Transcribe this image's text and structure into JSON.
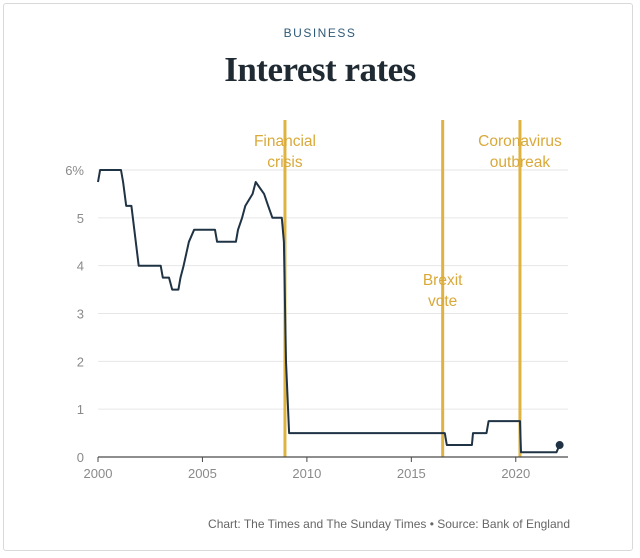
{
  "header": {
    "section": "BUSINESS",
    "title": "Interest rates"
  },
  "source": "Chart: The Times and The Sunday Times • Source: Bank of England",
  "colors": {
    "line": "#1f3344",
    "event": "#e0b341",
    "event_text": "#d9a93a",
    "grid": "#e6e6e6",
    "axis": "#4a4a4a",
    "tick_text": "#8a8a8a"
  },
  "chart_data": {
    "type": "line",
    "title": "Interest rates",
    "xlabel": "",
    "ylabel": "",
    "xlim": [
      2000,
      2022.5
    ],
    "ylim": [
      0,
      6
    ],
    "grid": true,
    "x_ticks": [
      2000,
      2005,
      2010,
      2015,
      2020
    ],
    "x_tick_labels": [
      "2000",
      "2005",
      "2010",
      "2015",
      "2020"
    ],
    "y_ticks": [
      0,
      1,
      2,
      3,
      4,
      5,
      6
    ],
    "y_tick_labels": [
      "0",
      "1",
      "2",
      "3",
      "4",
      "5",
      "6%"
    ],
    "series": [
      {
        "values": [
          [
            2000.0,
            5.75
          ],
          [
            2000.1,
            6.0
          ],
          [
            2001.1,
            6.0
          ],
          [
            2001.2,
            5.75
          ],
          [
            2001.35,
            5.25
          ],
          [
            2001.6,
            5.25
          ],
          [
            2001.95,
            4.0
          ],
          [
            2003.0,
            4.0
          ],
          [
            2003.1,
            3.75
          ],
          [
            2003.4,
            3.75
          ],
          [
            2003.55,
            3.5
          ],
          [
            2003.85,
            3.5
          ],
          [
            2003.95,
            3.75
          ],
          [
            2004.1,
            4.0
          ],
          [
            2004.35,
            4.5
          ],
          [
            2004.6,
            4.75
          ],
          [
            2005.6,
            4.75
          ],
          [
            2005.7,
            4.5
          ],
          [
            2006.6,
            4.5
          ],
          [
            2006.7,
            4.75
          ],
          [
            2006.9,
            5.0
          ],
          [
            2007.05,
            5.25
          ],
          [
            2007.4,
            5.5
          ],
          [
            2007.55,
            5.75
          ],
          [
            2007.95,
            5.5
          ],
          [
            2008.15,
            5.25
          ],
          [
            2008.35,
            5.0
          ],
          [
            2008.8,
            5.0
          ],
          [
            2008.9,
            4.5
          ],
          [
            2009.0,
            2.0
          ],
          [
            2009.15,
            0.5
          ],
          [
            2016.6,
            0.5
          ],
          [
            2016.7,
            0.25
          ],
          [
            2017.9,
            0.25
          ],
          [
            2017.95,
            0.5
          ],
          [
            2018.6,
            0.5
          ],
          [
            2018.7,
            0.75
          ],
          [
            2020.2,
            0.75
          ],
          [
            2020.25,
            0.1
          ],
          [
            2021.95,
            0.1
          ],
          [
            2022.1,
            0.25
          ]
        ]
      }
    ],
    "end_marker": [
      2022.1,
      0.25
    ],
    "annotations": [
      {
        "x": 2008.95,
        "lines": [
          "Financial",
          "crisis"
        ],
        "label_y": 6.5
      },
      {
        "x": 2016.5,
        "lines": [
          "Brexit",
          "vote"
        ],
        "label_y": 3.6
      },
      {
        "x": 2020.2,
        "lines": [
          "Coronavirus",
          "outbreak"
        ],
        "label_y": 6.5
      }
    ]
  }
}
